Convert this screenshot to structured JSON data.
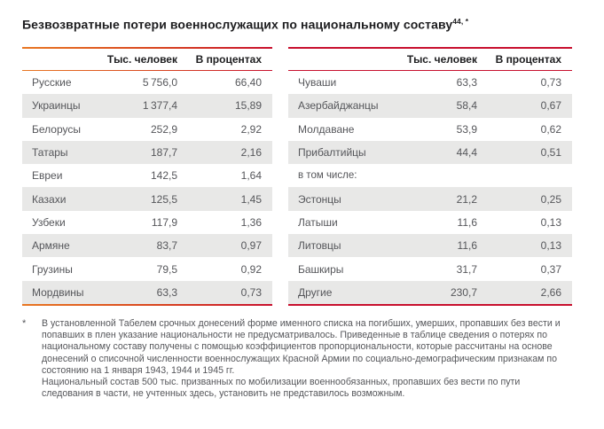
{
  "title": {
    "text": "Безвозвратные потери военнослужащих по национальному составу",
    "superscript": "44, *"
  },
  "columns": {
    "thousands": "Тыс. человек",
    "percent": "В процентах"
  },
  "tables": [
    {
      "side": "left",
      "rows": [
        {
          "label": "Русские",
          "thousands": "5 756,0",
          "percent": "66,40"
        },
        {
          "label": "Украинцы",
          "thousands": "1 377,4",
          "percent": "15,89"
        },
        {
          "label": "Белорусы",
          "thousands": "252,9",
          "percent": "2,92"
        },
        {
          "label": "Татары",
          "thousands": "187,7",
          "percent": "2,16"
        },
        {
          "label": "Евреи",
          "thousands": "142,5",
          "percent": "1,64"
        },
        {
          "label": "Казахи",
          "thousands": "125,5",
          "percent": "1,45"
        },
        {
          "label": "Узбеки",
          "thousands": "117,9",
          "percent": "1,36"
        },
        {
          "label": "Армяне",
          "thousands": "83,7",
          "percent": "0,97"
        },
        {
          "label": "Грузины",
          "thousands": "79,5",
          "percent": "0,92"
        },
        {
          "label": "Мордвины",
          "thousands": "63,3",
          "percent": "0,73"
        }
      ]
    },
    {
      "side": "right",
      "rows": [
        {
          "label": "Чуваши",
          "thousands": "63,3",
          "percent": "0,73"
        },
        {
          "label": "Азербайджанцы",
          "thousands": "58,4",
          "percent": "0,67"
        },
        {
          "label": "Молдаване",
          "thousands": "53,9",
          "percent": "0,62"
        },
        {
          "label": "Прибалтийцы",
          "thousands": "44,4",
          "percent": "0,51"
        },
        {
          "label": "в том числе:",
          "thousands": "",
          "percent": "",
          "subheader": true
        },
        {
          "label": "Эстонцы",
          "thousands": "21,2",
          "percent": "0,25"
        },
        {
          "label": "Латыши",
          "thousands": "11,6",
          "percent": "0,13"
        },
        {
          "label": "Литовцы",
          "thousands": "11,6",
          "percent": "0,13"
        },
        {
          "label": "Башкиры",
          "thousands": "31,7",
          "percent": "0,37"
        },
        {
          "label": "Другие",
          "thousands": "230,7",
          "percent": "2,66"
        }
      ]
    }
  ],
  "footnote": {
    "marker": "*",
    "paragraphs": [
      "В установленной Табелем срочных донесений форме именного списка на погибших, умерших, пропавших без вести и попавших в плен указание национальности не предусматривалось. Приведенные в таблице сведения о потерях по национальному составу получены с помощью коэффициентов пропорциональности, которые рассчитаны на основе донесений о списочной численности военнослужащих Красной Армии по социально-демографическим признакам по состоянию на 1 января 1943, 1944 и 1945 гг.",
      "Национальный состав 500 тыс. призванных по мобилизации военнообязанных, пропавших без вести по пути следования в части, не учтенных здесь, установить не представилось возможным."
    ]
  },
  "colors": {
    "accent_red": "#c8102e",
    "accent_orange": "#e87722",
    "row_shade": "#e8e8e7",
    "text_dark": "#1d1d1f",
    "text_gray": "#55565a"
  }
}
